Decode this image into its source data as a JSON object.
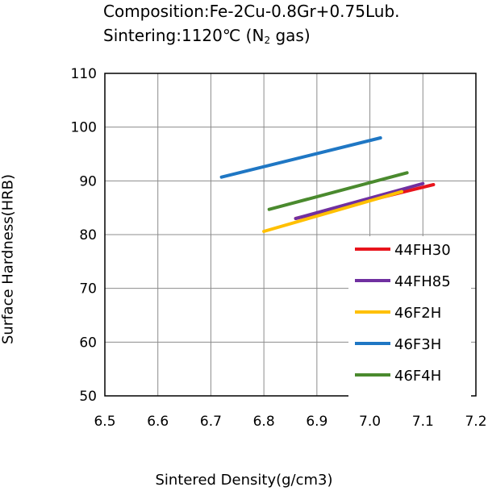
{
  "caption": {
    "line1": "Composition:Fe-2Cu-0.8Gr+0.75Lub.",
    "line2_prefix": "Sintering:1120℃  (N",
    "line2_sub": "2",
    "line2_suffix": " gas)"
  },
  "chart_data": {
    "type": "line",
    "xlabel": "Sintered Density(g/cm3)",
    "ylabel": "Surface Hardness(HRB)",
    "xlim": [
      6.5,
      7.2
    ],
    "ylim": [
      50,
      110
    ],
    "xticks": [
      "6.5",
      "6.6",
      "6.7",
      "6.8",
      "6.9",
      "7.0",
      "7.1",
      "7.2"
    ],
    "yticks": [
      "50",
      "60",
      "70",
      "80",
      "90",
      "100",
      "110"
    ],
    "grid": true,
    "legend_position": "bottom-right",
    "series": [
      {
        "name": "44FH30",
        "color": "#e8141c",
        "x": [
          6.86,
          7.12
        ],
        "y": [
          83.0,
          89.3
        ]
      },
      {
        "name": "44FH85",
        "color": "#7030a0",
        "x": [
          6.86,
          7.1
        ],
        "y": [
          83.0,
          89.5
        ]
      },
      {
        "name": "46F2H",
        "color": "#ffc000",
        "x": [
          6.8,
          7.06
        ],
        "y": [
          80.6,
          88.0
        ]
      },
      {
        "name": "46F3H",
        "color": "#1f77c4",
        "x": [
          6.72,
          7.02
        ],
        "y": [
          90.7,
          98.0
        ]
      },
      {
        "name": "46F4H",
        "color": "#4a8a2e",
        "x": [
          6.81,
          7.07
        ],
        "y": [
          84.7,
          91.5
        ]
      }
    ]
  }
}
